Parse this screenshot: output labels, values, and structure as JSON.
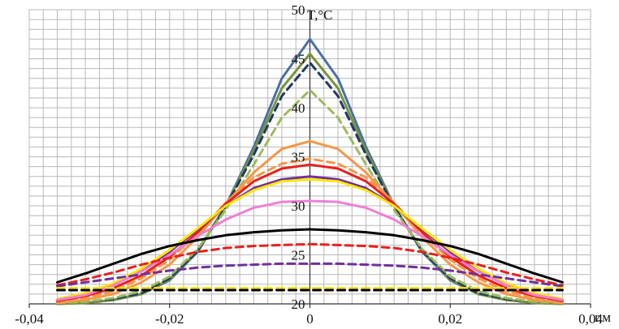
{
  "chart_data": {
    "type": "line",
    "title": "",
    "xlabel": "r,м",
    "ylabel": "T,°C",
    "xlim": [
      -0.04,
      0.04
    ],
    "ylim": [
      20,
      50
    ],
    "x_ticks": [
      "-0,04",
      "-0,02",
      "0",
      "0,02",
      "0,04"
    ],
    "y_ticks": [
      "20",
      "25",
      "30",
      "35",
      "40",
      "45",
      "50"
    ],
    "grid": true,
    "legend": "none",
    "x": [
      -0.036,
      -0.032,
      -0.028,
      -0.024,
      -0.02,
      -0.016,
      -0.012,
      -0.008,
      -0.004,
      0,
      0.004,
      0.008,
      0.012,
      0.016,
      0.02,
      0.024,
      0.028,
      0.032,
      0.036
    ],
    "series": [
      {
        "color": "#4a6fa5",
        "dash": "solid",
        "values": [
          20.0,
          20.1,
          20.4,
          21.0,
          22.4,
          25.3,
          30.0,
          36.0,
          43.0,
          47.0,
          43.0,
          36.0,
          30.0,
          25.3,
          22.4,
          21.0,
          20.4,
          20.1,
          20.0
        ]
      },
      {
        "color": "#77933c",
        "dash": "solid",
        "values": [
          20.0,
          20.1,
          20.4,
          21.0,
          22.5,
          25.4,
          30.0,
          35.6,
          42.0,
          45.5,
          42.0,
          35.6,
          30.0,
          25.4,
          22.5,
          21.0,
          20.4,
          20.1,
          20.0
        ]
      },
      {
        "color": "#1f3864",
        "dash": "dashed",
        "values": [
          20.1,
          20.2,
          20.5,
          21.1,
          22.6,
          25.4,
          29.9,
          35.2,
          41.2,
          44.6,
          41.2,
          35.2,
          29.9,
          25.4,
          22.6,
          21.1,
          20.5,
          20.2,
          20.1
        ]
      },
      {
        "color": "#9bbb59",
        "dash": "dashed",
        "values": [
          20.1,
          20.2,
          20.6,
          21.3,
          22.8,
          25.6,
          29.6,
          34.2,
          39.0,
          41.8,
          39.0,
          34.2,
          29.6,
          25.6,
          22.8,
          21.3,
          20.6,
          20.2,
          20.1
        ]
      },
      {
        "color": "#f79646",
        "dash": "solid",
        "values": [
          20.1,
          20.4,
          21.0,
          22.2,
          24.0,
          26.8,
          30.2,
          33.4,
          35.8,
          36.6,
          35.8,
          33.4,
          30.2,
          26.8,
          24.0,
          22.2,
          21.0,
          20.4,
          20.1
        ]
      },
      {
        "color": "#f79646",
        "dash": "dashed",
        "values": [
          20.2,
          20.6,
          21.3,
          22.6,
          24.5,
          27.2,
          30.3,
          32.9,
          34.3,
          34.8,
          34.3,
          32.9,
          30.3,
          27.2,
          24.5,
          22.6,
          21.3,
          20.6,
          20.2
        ]
      },
      {
        "color": "#e8201c",
        "dash": "solid",
        "values": [
          20.3,
          20.8,
          21.6,
          22.9,
          24.8,
          27.3,
          30.2,
          32.5,
          33.8,
          34.2,
          33.8,
          32.5,
          30.2,
          27.3,
          24.8,
          22.9,
          21.6,
          20.8,
          20.3
        ]
      },
      {
        "color": "#7030a0",
        "dash": "solid",
        "values": [
          20.4,
          21.0,
          22.0,
          23.4,
          25.3,
          27.6,
          30.0,
          31.8,
          32.7,
          33.0,
          32.7,
          31.8,
          30.0,
          27.6,
          25.3,
          23.4,
          22.0,
          21.0,
          20.4
        ]
      },
      {
        "color": "#ffe600",
        "dash": "solid",
        "values": [
          20.5,
          21.1,
          22.1,
          23.6,
          25.5,
          27.7,
          30.0,
          31.6,
          32.5,
          32.7,
          32.5,
          31.6,
          30.0,
          27.7,
          25.5,
          23.6,
          22.1,
          21.1,
          20.5
        ]
      },
      {
        "color": "#ef7fd6",
        "dash": "solid",
        "values": [
          20.4,
          20.9,
          21.9,
          23.3,
          25.0,
          26.9,
          28.6,
          29.8,
          30.4,
          30.5,
          30.4,
          29.8,
          28.6,
          26.9,
          25.0,
          23.3,
          21.9,
          20.9,
          20.4
        ]
      },
      {
        "color": "#000000",
        "dash": "solid",
        "values": [
          22.2,
          23.1,
          24.1,
          25.1,
          25.9,
          26.5,
          27.0,
          27.3,
          27.5,
          27.6,
          27.5,
          27.3,
          27.0,
          26.5,
          25.9,
          25.1,
          24.1,
          23.1,
          22.2
        ]
      },
      {
        "color": "#e8201c",
        "dash": "dashed",
        "values": [
          21.9,
          22.5,
          23.2,
          24.0,
          24.7,
          25.3,
          25.7,
          25.9,
          26.0,
          26.1,
          26.0,
          25.9,
          25.7,
          25.3,
          24.7,
          24.0,
          23.2,
          22.5,
          21.9
        ]
      },
      {
        "color": "#7030a0",
        "dash": "dashed",
        "values": [
          21.8,
          22.2,
          22.6,
          23.0,
          23.4,
          23.7,
          23.9,
          24.0,
          24.1,
          24.1,
          24.1,
          24.0,
          23.9,
          23.7,
          23.4,
          23.0,
          22.6,
          22.2,
          21.8
        ]
      },
      {
        "color": "#ffe600",
        "dash": "dashed",
        "values": [
          21.6,
          21.6,
          21.6,
          21.6,
          21.6,
          21.6,
          21.6,
          21.6,
          21.6,
          21.6,
          21.6,
          21.6,
          21.6,
          21.6,
          21.6,
          21.6,
          21.6,
          21.6,
          21.6
        ]
      },
      {
        "color": "#000000",
        "dash": "dashed",
        "values": [
          21.4,
          21.4,
          21.4,
          21.4,
          21.4,
          21.4,
          21.4,
          21.4,
          21.4,
          21.4,
          21.4,
          21.4,
          21.4,
          21.4,
          21.4,
          21.4,
          21.4,
          21.4,
          21.4
        ]
      }
    ]
  }
}
